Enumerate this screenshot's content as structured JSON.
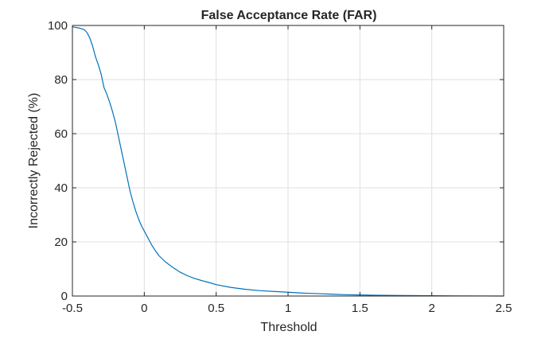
{
  "chart_data": {
    "type": "line",
    "title": "False Acceptance Rate (FAR)",
    "xlabel": "Threshold",
    "ylabel": "Incorrectly Rejected (%)",
    "xlim": [
      -0.5,
      2.5
    ],
    "ylim": [
      0,
      100
    ],
    "xticks": [
      -0.5,
      0,
      0.5,
      1,
      1.5,
      2,
      2.5
    ],
    "xtick_labels": [
      "-0.5",
      "0",
      "0.5",
      "1",
      "1.5",
      "2",
      "2.5"
    ],
    "yticks": [
      0,
      20,
      40,
      60,
      80,
      100
    ],
    "ytick_labels": [
      "0",
      "20",
      "40",
      "60",
      "80",
      "100"
    ],
    "grid": true,
    "colors": {
      "series": "#0072bd",
      "grid": "#dfdfdf",
      "axis": "#262626"
    },
    "series": [
      {
        "x": [
          -0.5,
          -0.45,
          -0.42,
          -0.4,
          -0.38,
          -0.36,
          -0.34,
          -0.32,
          -0.3,
          -0.28,
          -0.26,
          -0.25,
          -0.24,
          -0.22,
          -0.2,
          -0.18,
          -0.16,
          -0.14,
          -0.12,
          -0.1,
          -0.08,
          -0.06,
          -0.04,
          -0.02,
          0,
          0.02,
          0.05,
          0.08,
          0.1,
          0.15,
          0.2,
          0.25,
          0.3,
          0.35,
          0.4,
          0.45,
          0.5,
          0.6,
          0.7,
          0.8,
          0.9,
          1,
          1.1,
          1.2,
          1.3,
          1.4,
          1.5,
          1.6,
          1.8,
          2,
          2.2,
          2.5
        ],
        "y": [
          99.5,
          99,
          98.5,
          97.5,
          95.5,
          92.5,
          88.5,
          85.5,
          82,
          77,
          74.5,
          73,
          71.5,
          68,
          64,
          59,
          54,
          49,
          44,
          39,
          35,
          31.5,
          28.5,
          26,
          24,
          22,
          19,
          16.5,
          15,
          12.5,
          10.5,
          8.8,
          7.5,
          6.5,
          5.7,
          5,
          4.2,
          3.2,
          2.5,
          2,
          1.7,
          1.4,
          1.1,
          0.9,
          0.7,
          0.5,
          0.4,
          0.3,
          0.2,
          0.1,
          0.05,
          0
        ]
      }
    ]
  }
}
